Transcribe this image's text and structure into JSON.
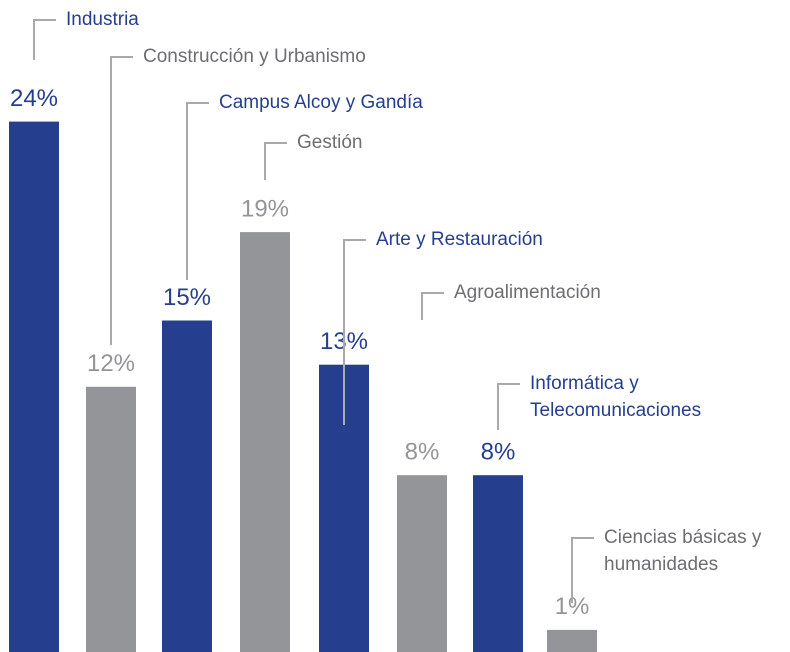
{
  "chart_data": {
    "type": "bar",
    "categories": [
      "Industria",
      "Construcción y Urbanismo",
      "Campus Alcoy y Gandía",
      "Gestión",
      "Arte y Restauración",
      "Agroalimentación",
      "Informática y\nTelecomunicaciones",
      "Ciencias básicas y\nhumanidades"
    ],
    "values": [
      24,
      12,
      15,
      19,
      13,
      8,
      8,
      1
    ],
    "value_labels": [
      "24%",
      "12%",
      "15%",
      "19%",
      "13%",
      "8%",
      "8%",
      "1%"
    ],
    "colors": [
      "#253f8e",
      "#939598",
      "#253f8e",
      "#939598",
      "#253f8e",
      "#939598",
      "#253f8e",
      "#939598"
    ]
  }
}
